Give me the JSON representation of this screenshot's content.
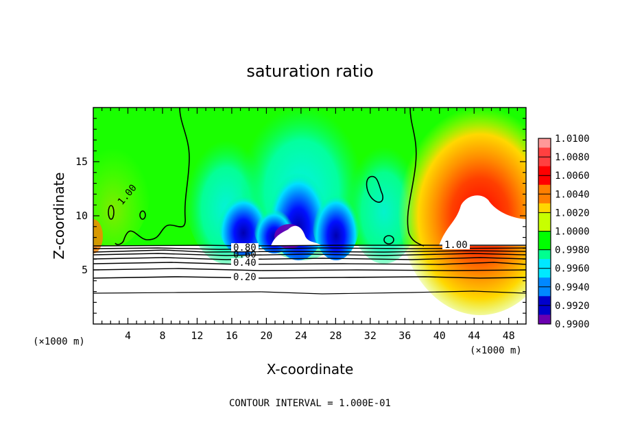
{
  "chart_data": {
    "type": "heatmap",
    "title": "saturation ratio",
    "xlabel": "X-coordinate",
    "ylabel": "Z-coordinate",
    "x_unit": "(×1000 m)",
    "x_unit_right": "(×1000 m)",
    "xlim": [
      0,
      50
    ],
    "ylim": [
      0,
      20
    ],
    "xticks": [
      4,
      8,
      12,
      16,
      20,
      24,
      28,
      32,
      36,
      40,
      44,
      48
    ],
    "yticks": [
      5,
      10,
      15
    ],
    "colorbar": {
      "levels": [
        "1.0100",
        "1.0080",
        "1.0060",
        "1.0040",
        "1.0020",
        "1.0000",
        "0.9980",
        "0.9960",
        "0.9940",
        "0.9920",
        "0.9900"
      ],
      "colors": [
        "#ff9999",
        "#ff4040",
        "#ff0000",
        "#ff7f00",
        "#ffd700",
        "#c8ff00",
        "#00ff00",
        "#00ff90",
        "#00e8ff",
        "#0088ff",
        "#0000cc",
        "#6a00b0"
      ]
    },
    "contour_labels": [
      "0.80",
      "0.60",
      "0.40",
      "0.20",
      "1.00",
      "1.00"
    ],
    "note": "CONTOUR INTERVAL = 1.000E-01"
  }
}
